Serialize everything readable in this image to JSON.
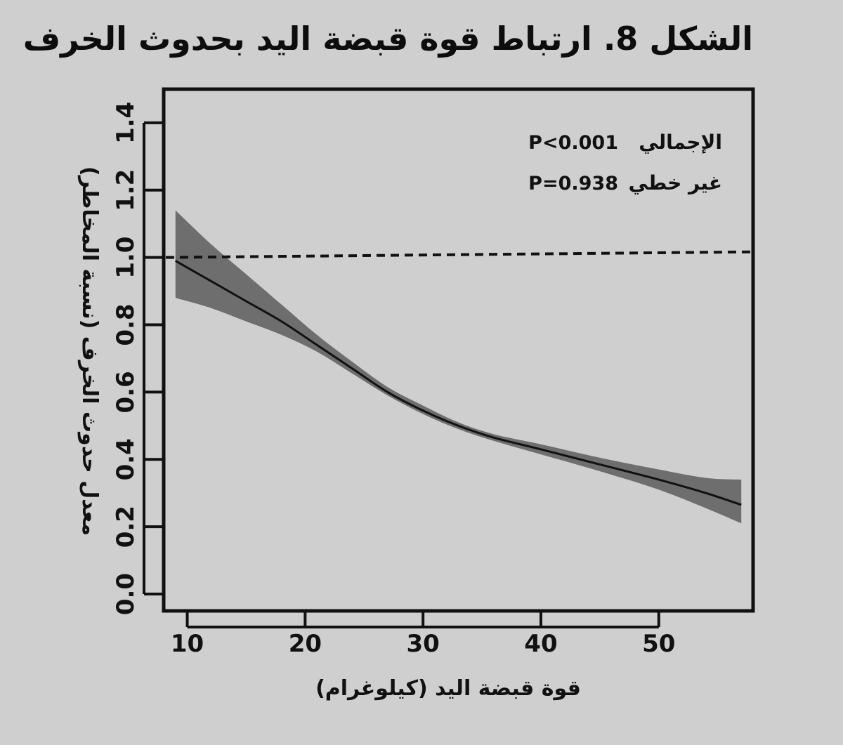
{
  "figure": {
    "title": "الشكل 8. ارتباط قوة قبضة اليد بحدوث الخرف"
  },
  "colors": {
    "background": "#cfcfcf",
    "band": "#6e6e6e",
    "line": "#111111",
    "frame": "#111111"
  },
  "chart_data": {
    "type": "line",
    "title": "",
    "xlabel": "قوة قبضة اليد (كيلوغرام)",
    "ylabel": "معدل حدوث الخرف (نسبة المخاطر)",
    "xlim": [
      8,
      58
    ],
    "ylim": [
      -0.05,
      1.5
    ],
    "x_ticks": [
      10,
      20,
      30,
      40,
      50
    ],
    "x_tick_labels": [
      "10",
      "20",
      "30",
      "40",
      "50"
    ],
    "y_ticks": [
      0.0,
      0.2,
      0.4,
      0.6,
      0.8,
      1.0,
      1.2,
      1.4
    ],
    "y_tick_labels": [
      "0.0",
      "0.2",
      "0.4",
      "0.6",
      "0.8",
      "1.0",
      "1.2",
      "1.4"
    ],
    "grid": false,
    "reference_line": {
      "y": 1.0,
      "style": "dashed"
    },
    "annotations": [
      {
        "label": "الإجمالي",
        "value": "P<0.001"
      },
      {
        "label": "غير خطي",
        "value": "P=0.938"
      }
    ],
    "series": [
      {
        "x": [
          9,
          12,
          15,
          18,
          21,
          24,
          27,
          30,
          33,
          36,
          40,
          45,
          50,
          54,
          57
        ],
        "y": [
          0.99,
          0.93,
          0.87,
          0.81,
          0.74,
          0.67,
          0.6,
          0.545,
          0.5,
          0.465,
          0.43,
          0.385,
          0.34,
          0.3,
          0.265
        ],
        "lower": [
          0.88,
          0.85,
          0.81,
          0.77,
          0.72,
          0.655,
          0.59,
          0.535,
          0.49,
          0.455,
          0.415,
          0.365,
          0.31,
          0.255,
          0.21
        ],
        "upper": [
          1.14,
          1.04,
          0.95,
          0.86,
          0.77,
          0.69,
          0.615,
          0.56,
          0.51,
          0.475,
          0.445,
          0.405,
          0.37,
          0.345,
          0.34
        ]
      }
    ]
  }
}
